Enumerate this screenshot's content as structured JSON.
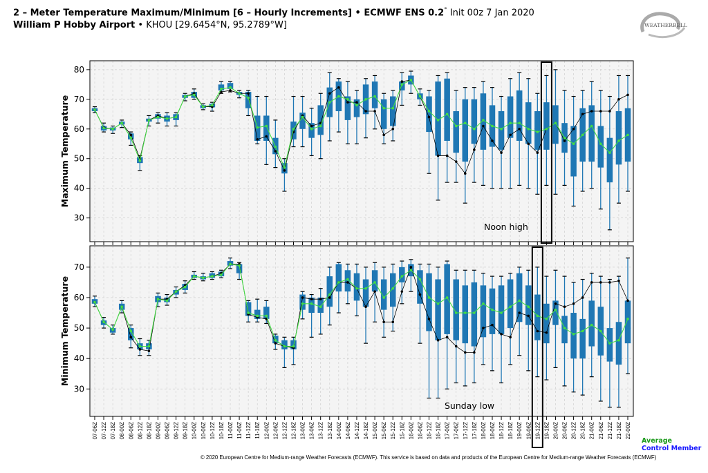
{
  "header": {
    "title_bold": "2 – Meter Temperature Maximum/Minimum [6 – Hourly Increments] • ECMWF ENS 0.2",
    "title_degree": "°",
    "title_init": " Init 00z 7 Jan 2020",
    "location_bold": "William P Hobby Airport",
    "location_detail": " • KHOU [29.6454°N, 95.2789°W]"
  },
  "logo": {
    "text": "WEATHERBELL"
  },
  "legend": {
    "average": "Average",
    "control": "Control Member",
    "average_color": "#1a9a1a",
    "control_color": "#1a1aff"
  },
  "footer": "© 2020 European Centre for Medium-range Weather Forecasts (ECMWF). This service is based on data and products of the European Centre for Medium-range Weather Forecasts (ECMWF)",
  "colors": {
    "box": "#1f77b4",
    "average": "#44dd44",
    "control": "#000000",
    "highlight": "#000000"
  },
  "chart_data": [
    {
      "type": "box",
      "ylabel": "Maximum Temperature",
      "ylim": [
        22,
        83
      ],
      "yticks": [
        30,
        40,
        50,
        60,
        70,
        80
      ],
      "grid": true,
      "annotation": "Noon high",
      "highlight_category": "19-18Z",
      "categories": [
        "07-06Z",
        "07-12Z",
        "07-18Z",
        "08-00Z",
        "08-06Z",
        "08-12Z",
        "08-18Z",
        "09-00Z",
        "09-06Z",
        "09-12Z",
        "09-18Z",
        "10-00Z",
        "10-06Z",
        "10-12Z",
        "10-18Z",
        "11-00Z",
        "11-06Z",
        "11-12Z",
        "11-18Z",
        "12-00Z",
        "12-06Z",
        "12-12Z",
        "12-18Z",
        "13-00Z",
        "13-06Z",
        "13-12Z",
        "13-18Z",
        "14-00Z",
        "14-06Z",
        "14-12Z",
        "14-18Z",
        "15-00Z",
        "15-06Z",
        "15-12Z",
        "15-18Z",
        "16-00Z",
        "16-06Z",
        "16-12Z",
        "16-18Z",
        "17-00Z",
        "17-06Z",
        "17-12Z",
        "17-18Z",
        "18-00Z",
        "18-06Z",
        "18-12Z",
        "18-18Z",
        "19-00Z",
        "19-06Z",
        "19-12Z",
        "19-18Z",
        "20-00Z",
        "20-06Z",
        "20-12Z",
        "20-18Z",
        "21-00Z",
        "21-06Z",
        "21-12Z",
        "21-18Z",
        "22-00Z"
      ],
      "whisker_low": [
        65.5,
        59,
        58.5,
        60.5,
        54.5,
        46,
        61,
        62,
        61,
        61,
        69.5,
        70,
        66.5,
        66,
        72,
        72.5,
        70.5,
        64.5,
        55,
        48,
        47,
        39,
        54,
        54,
        51,
        50,
        56,
        59,
        55,
        55,
        57,
        60,
        55,
        56,
        68,
        72,
        68,
        45,
        36,
        42,
        42,
        35,
        42,
        41,
        40,
        40,
        40,
        41,
        40,
        38,
        41,
        38,
        41,
        34,
        39,
        40,
        33,
        26,
        35,
        39
      ],
      "q1": [
        66,
        59.5,
        59.5,
        61.5,
        56.5,
        48.5,
        62.5,
        63.5,
        62.5,
        63,
        70.5,
        70.5,
        67,
        67.3,
        73,
        73.5,
        71.5,
        67,
        56,
        56,
        51.5,
        45,
        56.5,
        60,
        57,
        58,
        64,
        66,
        63,
        64,
        65,
        67,
        60,
        61,
        73,
        75,
        70,
        59,
        51,
        56,
        52,
        49,
        55,
        53,
        54,
        53,
        57,
        56,
        55,
        53,
        53,
        55,
        52,
        44,
        49,
        49,
        47,
        42,
        48,
        49
      ],
      "q3": [
        67,
        61,
        60.5,
        62.5,
        58.5,
        50.5,
        63.5,
        65,
        64.5,
        65,
        71.5,
        72.5,
        68,
        68.5,
        75,
        75.5,
        72.5,
        72.5,
        64.5,
        64.5,
        57,
        48.5,
        62.5,
        65.5,
        62,
        68,
        74,
        76,
        71,
        70,
        75,
        76,
        70,
        71,
        76,
        78,
        72,
        71,
        76,
        77,
        66,
        70,
        70,
        72,
        68,
        66,
        71,
        73,
        69,
        66,
        69,
        68,
        62,
        61,
        67,
        68,
        61,
        57,
        66,
        67
      ],
      "whisker_high": [
        67.5,
        62,
        61,
        63,
        59,
        51,
        64.5,
        65.5,
        65.5,
        65.5,
        72,
        73.5,
        68.5,
        69,
        76,
        76,
        73,
        73,
        71,
        71,
        63,
        50,
        71,
        71,
        67,
        72,
        79,
        77,
        76,
        73,
        77,
        78,
        72,
        73,
        79,
        79.5,
        73.5,
        73,
        78,
        79,
        73,
        74,
        74,
        76,
        74,
        71,
        77,
        79,
        77,
        72,
        78,
        80,
        73,
        71,
        73,
        76,
        73,
        71,
        78,
        78
      ],
      "average": [
        66.5,
        60.3,
        60,
        62,
        57,
        49.3,
        63,
        64,
        63.5,
        64,
        71,
        71.5,
        67.5,
        68,
        73.5,
        74,
        72,
        70.5,
        60.5,
        61,
        54,
        47,
        60,
        64,
        60,
        61,
        69,
        71,
        70,
        68,
        70,
        71,
        67,
        67,
        75,
        76.5,
        71,
        66,
        63,
        65,
        61,
        62,
        60,
        63,
        61,
        60,
        62,
        62,
        60,
        59,
        60,
        62,
        57,
        55,
        58,
        61,
        55,
        52,
        56,
        58
      ],
      "control": [
        66.5,
        60.5,
        60,
        62,
        58,
        50,
        63,
        64.5,
        63.5,
        64,
        71,
        72,
        67.5,
        67.5,
        72.5,
        73,
        72,
        72,
        56.5,
        57.5,
        52.5,
        46,
        59,
        64.5,
        61,
        62,
        72,
        74,
        69,
        69,
        66,
        66,
        58,
        60,
        76,
        76.5,
        71,
        64,
        51,
        51,
        49,
        45,
        53,
        61,
        56,
        52,
        58,
        60,
        55,
        52,
        60,
        62,
        56,
        60,
        65,
        66,
        66,
        66,
        70,
        71.5
      ]
    },
    {
      "type": "box",
      "ylabel": "Minimum Temperature",
      "ylim": [
        21,
        77
      ],
      "yticks": [
        30,
        40,
        50,
        60,
        70
      ],
      "grid": true,
      "annotation": "Sunday low",
      "highlight_category": "19-12Z",
      "categories": [
        "07-06Z",
        "07-12Z",
        "07-18Z",
        "08-00Z",
        "08-06Z",
        "08-12Z",
        "08-18Z",
        "09-00Z",
        "09-06Z",
        "09-12Z",
        "09-18Z",
        "10-00Z",
        "10-06Z",
        "10-12Z",
        "10-18Z",
        "11-00Z",
        "11-06Z",
        "11-12Z",
        "11-18Z",
        "12-00Z",
        "12-06Z",
        "12-12Z",
        "12-18Z",
        "13-00Z",
        "13-06Z",
        "13-12Z",
        "13-18Z",
        "14-00Z",
        "14-06Z",
        "14-12Z",
        "14-18Z",
        "15-00Z",
        "15-06Z",
        "15-12Z",
        "15-18Z",
        "16-00Z",
        "16-06Z",
        "16-12Z",
        "16-18Z",
        "17-00Z",
        "17-06Z",
        "17-12Z",
        "17-18Z",
        "18-00Z",
        "18-06Z",
        "18-12Z",
        "18-18Z",
        "19-00Z",
        "19-06Z",
        "19-12Z",
        "19-18Z",
        "20-00Z",
        "20-06Z",
        "20-12Z",
        "20-18Z",
        "21-00Z",
        "21-06Z",
        "21-12Z",
        "21-18Z",
        "22-00Z"
      ],
      "whisker_low": [
        57,
        50,
        48,
        55,
        43.5,
        41,
        41,
        57,
        57.5,
        60,
        61.5,
        66,
        65.5,
        66,
        66.5,
        69.5,
        66,
        52,
        52,
        51.5,
        43,
        37,
        38,
        53,
        47,
        48,
        51,
        55,
        58,
        54,
        45,
        52,
        47,
        49,
        58,
        62,
        45,
        27,
        27,
        30,
        32,
        31,
        32,
        38,
        36,
        32,
        38,
        41,
        36,
        34,
        33,
        37,
        31,
        29,
        28,
        34,
        26,
        24,
        24,
        35
      ],
      "q1": [
        58,
        51,
        48.5,
        56,
        46,
        43,
        43,
        58.5,
        58.5,
        61,
        62.5,
        66.5,
        66,
        66.5,
        67,
        70.5,
        68,
        54,
        53,
        53,
        45,
        43,
        43,
        56,
        55,
        55,
        57,
        62,
        62,
        59,
        57,
        62,
        56,
        57,
        65,
        67,
        58,
        49,
        46,
        48,
        46,
        45,
        44,
        47,
        48,
        48,
        50,
        52,
        51,
        46,
        45,
        51,
        45,
        40,
        40,
        44,
        41,
        39,
        38,
        45
      ],
      "q3": [
        59.5,
        52.5,
        50,
        58,
        50,
        45,
        45,
        60.5,
        60,
        62.5,
        64.5,
        67.5,
        67,
        68,
        68.5,
        72,
        71,
        58.5,
        56,
        57,
        47.5,
        46,
        46,
        61,
        60,
        60,
        67,
        71,
        69,
        68,
        66,
        69,
        66,
        68,
        70,
        71,
        69,
        68,
        66,
        71,
        66,
        64,
        65,
        64,
        63,
        64,
        66,
        68,
        64,
        61,
        58,
        59,
        54,
        55,
        53,
        59,
        57,
        50,
        52,
        59
      ],
      "whisker_high": [
        60.5,
        53.5,
        51,
        59,
        51,
        46.5,
        46,
        61.5,
        61,
        63.5,
        65.5,
        68.5,
        68,
        68.5,
        69,
        73,
        71.5,
        59,
        59.5,
        59,
        48,
        47,
        47,
        62,
        61,
        63,
        70,
        71.5,
        71,
        71,
        70,
        71.5,
        70,
        71,
        72,
        72.5,
        71,
        71,
        70,
        72,
        69,
        69,
        69,
        68,
        67,
        67,
        68,
        70,
        69,
        70,
        67,
        69,
        67,
        65,
        66,
        68,
        67,
        66,
        67,
        73
      ],
      "average": [
        58.5,
        52,
        49.5,
        57,
        49,
        44,
        44,
        59.5,
        59,
        62,
        63.5,
        67,
        66.5,
        67,
        67.5,
        71,
        70.5,
        55,
        54,
        54,
        46,
        44,
        44,
        58,
        58,
        57,
        61,
        65,
        66,
        63,
        63,
        65,
        60,
        63,
        67,
        69,
        66,
        60,
        58,
        60,
        55,
        55,
        55,
        58,
        56,
        55,
        57,
        59,
        57,
        54,
        53,
        56,
        50,
        48,
        49,
        51,
        49,
        45,
        46,
        53
      ],
      "control": [
        58.5,
        52,
        49.5,
        57,
        47,
        43,
        42.5,
        59.5,
        59.5,
        62,
        64,
        67,
        66.5,
        67,
        68,
        71,
        71,
        54.5,
        53.5,
        53,
        45,
        44,
        43.5,
        60,
        59.5,
        59.5,
        60,
        65,
        65,
        63,
        57,
        62,
        52,
        52,
        62,
        70,
        61,
        53,
        46,
        47,
        44,
        42,
        42,
        50,
        51,
        48,
        47,
        55,
        54,
        49,
        48.5,
        58,
        57,
        58,
        60,
        65,
        65,
        65,
        65.5,
        59
      ]
    }
  ]
}
